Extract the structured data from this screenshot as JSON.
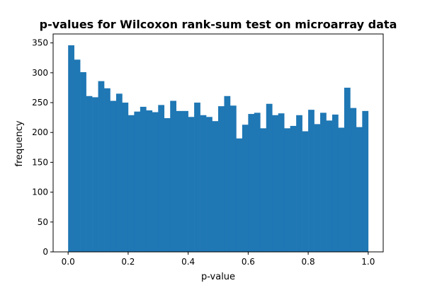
{
  "chart_data": {
    "type": "bar",
    "title": "p-values for Wilcoxon rank-sum test on microarray data",
    "xlabel": "p-value",
    "ylabel": "frequency",
    "xlim": [
      -0.05,
      1.05
    ],
    "ylim": [
      0,
      365
    ],
    "xticks": [
      0.0,
      0.2,
      0.4,
      0.6,
      0.8,
      1.0
    ],
    "xtick_labels": [
      "0.0",
      "0.2",
      "0.4",
      "0.6",
      "0.8",
      "1.0"
    ],
    "yticks": [
      0,
      50,
      100,
      150,
      200,
      250,
      300,
      350
    ],
    "ytick_labels": [
      "0",
      "50",
      "100",
      "150",
      "200",
      "250",
      "300",
      "350"
    ],
    "grid": false,
    "bar_color": "#1f77b4",
    "bin_edges_start": 0.0,
    "bin_width": 0.02,
    "values": [
      346,
      322,
      301,
      261,
      259,
      286,
      274,
      253,
      265,
      250,
      229,
      235,
      243,
      237,
      234,
      246,
      224,
      253,
      236,
      236,
      226,
      250,
      229,
      226,
      219,
      244,
      261,
      245,
      190,
      213,
      231,
      233,
      207,
      248,
      229,
      232,
      207,
      211,
      229,
      202,
      238,
      214,
      233,
      220,
      230,
      208,
      275,
      241,
      209,
      236
    ]
  }
}
